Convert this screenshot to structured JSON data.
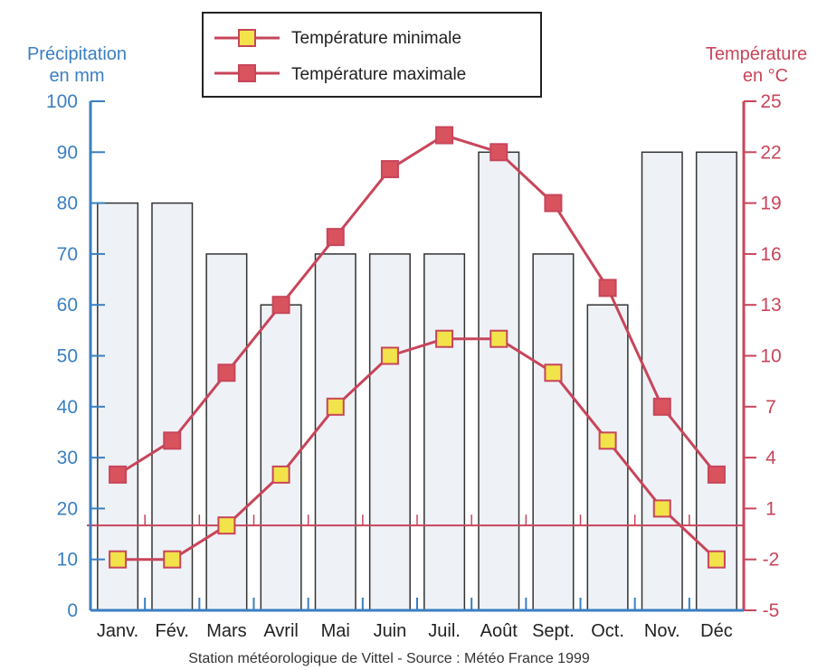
{
  "chart_data": {
    "type": "bar+line",
    "source": "Station météorologique de Vittel - Source : Météo France 1999",
    "categories": [
      "Janv.",
      "Fév.",
      "Mars",
      "Avril",
      "Mai",
      "Juin",
      "Juil.",
      "Août",
      "Sept.",
      "Oct.",
      "Nov.",
      "Déc"
    ],
    "left_axis": {
      "label_line1": "Précipitation",
      "label_line2": "en mm",
      "range": [
        0,
        100
      ],
      "ticks": [
        "0",
        "10",
        "20",
        "30",
        "40",
        "50",
        "60",
        "70",
        "80",
        "90",
        "100"
      ]
    },
    "right_axis": {
      "label_line1": "Température",
      "label_line2": "en °C",
      "range": [
        -5,
        25
      ],
      "ticks": [
        "-5",
        "-2",
        "1",
        "4",
        "7",
        "10",
        "13",
        "16",
        "19",
        "22",
        "25"
      ]
    },
    "bars": {
      "values": [
        80,
        80,
        70,
        60,
        70,
        70,
        70,
        90,
        70,
        60,
        90,
        90
      ]
    },
    "series": [
      {
        "name": "Température minimale",
        "axis": "right",
        "values": [
          -2,
          -2,
          0,
          3,
          7,
          10,
          11,
          11,
          9,
          5,
          1,
          -2
        ]
      },
      {
        "name": "Température maximale",
        "axis": "right",
        "values": [
          3,
          5,
          9,
          13,
          17,
          21,
          23,
          22,
          19,
          14,
          7,
          3
        ]
      }
    ],
    "reference_line": {
      "axis": "right",
      "value": 0
    },
    "colors": {
      "precip": "#3a7fc1",
      "temp": "#c8455a",
      "min_marker": "#f2e34a",
      "max_marker": "#d9535f",
      "bar_fill": "#eef2f6"
    },
    "legend": {
      "position": "top-center"
    }
  }
}
